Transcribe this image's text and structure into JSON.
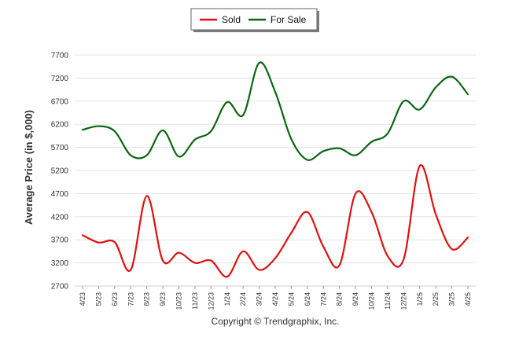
{
  "chart_data": {
    "type": "line",
    "ylabel": "Average Price (in $,000)",
    "footer": "Copyright © Trendgraphix, Inc.",
    "ylim": [
      2700,
      7700
    ],
    "yticks": [
      2700,
      3200,
      3700,
      4200,
      4700,
      5200,
      5700,
      6200,
      6700,
      7200,
      7700
    ],
    "grid": true,
    "legend_position": "top-center",
    "categories": [
      "4/23",
      "5/23",
      "6/23",
      "7/23",
      "8/23",
      "9/23",
      "10/23",
      "11/23",
      "12/23",
      "1/24",
      "2/24",
      "3/24",
      "4/24",
      "5/24",
      "6/24",
      "7/24",
      "8/24",
      "9/24",
      "10/24",
      "11/24",
      "12/24",
      "1/25",
      "2/25",
      "3/25",
      "4/25"
    ],
    "series": [
      {
        "name": "Sold",
        "color": "#dd1111",
        "values": [
          3800,
          3640,
          3650,
          3050,
          4650,
          3250,
          3420,
          3200,
          3250,
          2900,
          3450,
          3050,
          3300,
          3850,
          4300,
          3550,
          3150,
          4700,
          4300,
          3350,
          3280,
          5300,
          4250,
          3500,
          3750
        ]
      },
      {
        "name": "For Sale",
        "color": "#0a6611",
        "values": [
          6080,
          6160,
          6050,
          5530,
          5530,
          6070,
          5500,
          5870,
          6050,
          6680,
          6400,
          7530,
          6900,
          5880,
          5430,
          5620,
          5680,
          5530,
          5820,
          6000,
          6700,
          6520,
          7000,
          7230,
          6850
        ]
      }
    ]
  }
}
